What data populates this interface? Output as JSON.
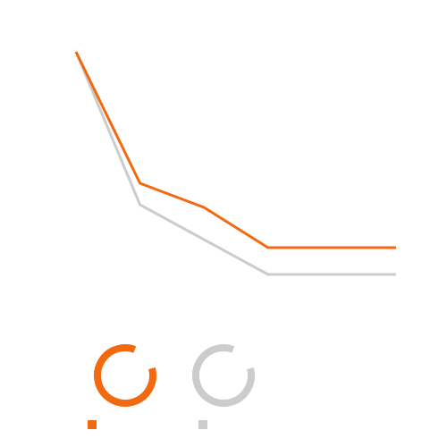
{
  "chart_data": {
    "type": "line",
    "categories": [
      null,
      null,
      null,
      null,
      null,
      null
    ],
    "series": [
      {
        "color": "#f26a10",
        "values": [
          94,
          45,
          36,
          21,
          21,
          21
        ]
      },
      {
        "color": "#cccccc",
        "values": [
          94,
          37,
          24,
          11,
          11,
          11
        ]
      }
    ],
    "ylim": [
      0,
      100
    ],
    "grid": false
  }
}
